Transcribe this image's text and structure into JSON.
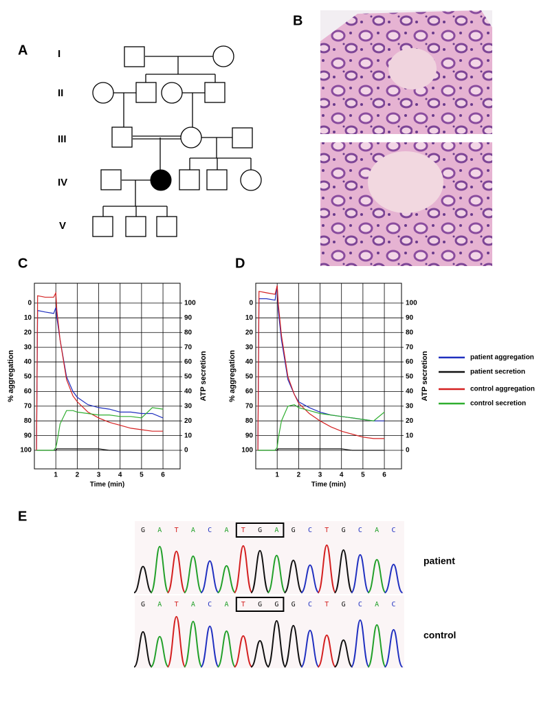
{
  "panel_labels": [
    "A",
    "B",
    "C",
    "D",
    "E"
  ],
  "pedigree": {
    "generations": [
      "I",
      "II",
      "III",
      "IV",
      "V"
    ]
  },
  "chart_data": [
    {
      "type": "line",
      "xlabel": "Time (min)",
      "ylabel": "% aggregation",
      "y2label": "ATP secretion",
      "x": [
        0.1,
        0.15,
        0.5,
        0.9,
        1.0,
        1.05,
        1.2,
        1.5,
        1.8,
        2,
        2.5,
        3,
        3.5,
        4,
        4.5,
        5,
        5.5,
        6
      ],
      "xlim": [
        0,
        6.8
      ],
      "xticks": [
        1,
        2,
        3,
        4,
        5,
        6
      ],
      "ylim": [
        -13.5,
        112.6
      ],
      "y_inverted": true,
      "yticks": [
        0,
        10,
        20,
        30,
        40,
        50,
        60,
        70,
        80,
        90,
        100
      ],
      "y2lim": [
        -12.6,
        113.5
      ],
      "y2ticks": [
        0,
        10,
        20,
        30,
        40,
        50,
        60,
        70,
        80,
        90,
        100
      ],
      "grid": true,
      "series": [
        {
          "color": "#1f2fbf",
          "values": [
            100,
            5,
            6,
            7,
            3,
            10,
            25,
            50,
            60,
            64,
            69,
            71,
            72,
            74,
            74,
            75,
            75,
            78
          ]
        },
        {
          "color": "#111111",
          "axis": "y2",
          "values": [
            0,
            0,
            0,
            0,
            0,
            1,
            1,
            1,
            1,
            1,
            1,
            1,
            0,
            0,
            0,
            0,
            0,
            0
          ]
        },
        {
          "color": "#d42020",
          "values": [
            100,
            -5,
            -4,
            -4,
            -7,
            5,
            25,
            52,
            63,
            67,
            74,
            78,
            81,
            83,
            85,
            86,
            87,
            87
          ]
        },
        {
          "color": "#2fae2f",
          "axis": "y2",
          "values": [
            0,
            0,
            0,
            0,
            2,
            5,
            18,
            27,
            27,
            26,
            25,
            24,
            24,
            23,
            23,
            22,
            29,
            28
          ]
        }
      ]
    },
    {
      "type": "line",
      "xlabel": "Time (min)",
      "ylabel": "% aggregation",
      "y2label": "ATP secretion",
      "x": [
        0.1,
        0.15,
        0.5,
        0.9,
        1.0,
        1.05,
        1.2,
        1.5,
        1.8,
        2,
        2.5,
        3,
        3.5,
        4,
        4.5,
        5,
        5.5,
        6
      ],
      "xlim": [
        0,
        6.8
      ],
      "xticks": [
        1,
        2,
        3,
        4,
        5,
        6
      ],
      "ylim": [
        -13.5,
        112.6
      ],
      "y_inverted": true,
      "yticks": [
        0,
        10,
        20,
        30,
        40,
        50,
        60,
        70,
        80,
        90,
        100
      ],
      "y2lim": [
        -12.6,
        113.5
      ],
      "y2ticks": [
        0,
        10,
        20,
        30,
        40,
        50,
        60,
        70,
        80,
        90,
        100
      ],
      "grid": true,
      "legend": "right",
      "series": [
        {
          "name": "patient aggregation",
          "color": "#1f2fbf",
          "values": [
            100,
            -3,
            -3,
            -2,
            -12,
            5,
            25,
            52,
            62,
            67,
            71,
            74,
            76,
            77,
            78,
            79,
            80,
            80
          ]
        },
        {
          "name": "patient secretion",
          "color": "#111111",
          "axis": "y2",
          "values": [
            0,
            0,
            0,
            0,
            0,
            1,
            1,
            1,
            1,
            1,
            1,
            1,
            1,
            1,
            0,
            0,
            0,
            0
          ]
        },
        {
          "name": "control aggregation",
          "color": "#d42020",
          "values": [
            100,
            -8,
            -7,
            -6,
            -12,
            0,
            22,
            50,
            62,
            68,
            75,
            80,
            84,
            87,
            89,
            91,
            92,
            92
          ]
        },
        {
          "name": "control secretion",
          "color": "#2fae2f",
          "axis": "y2",
          "values": [
            0,
            0,
            0,
            0,
            2,
            8,
            20,
            30,
            31,
            29,
            27,
            25,
            24,
            23,
            22,
            21,
            20,
            26
          ]
        }
      ]
    }
  ],
  "sequencing": {
    "rows": [
      {
        "label": "patient",
        "bases": [
          "G",
          "A",
          "T",
          "A",
          "C",
          "A",
          "T",
          "G",
          "A",
          "G",
          "C",
          "T",
          "G",
          "C",
          "A",
          "C"
        ]
      },
      {
        "label": "control",
        "bases": [
          "G",
          "A",
          "T",
          "A",
          "C",
          "A",
          "T",
          "G",
          "G",
          "G",
          "C",
          "T",
          "G",
          "C",
          "A",
          "C"
        ]
      }
    ]
  }
}
